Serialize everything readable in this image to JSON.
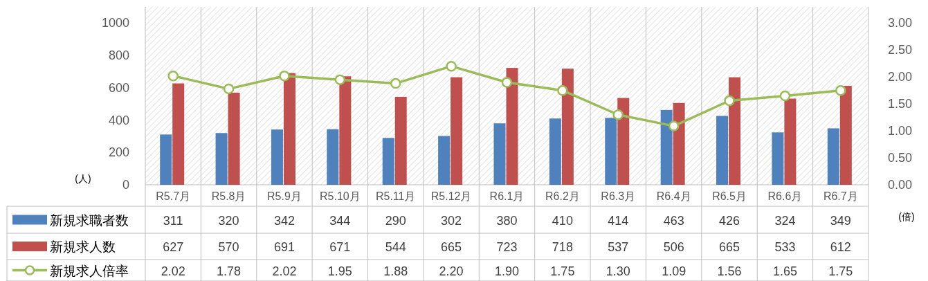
{
  "chart_data": {
    "type": "bar",
    "categories": [
      "R5.7月",
      "R5.8月",
      "R5.9月",
      "R5.10月",
      "R5.11月",
      "R5.12月",
      "R6.1月",
      "R6.2月",
      "R6.3月",
      "R6.4月",
      "R6.5月",
      "R6.6月",
      "R6.7月"
    ],
    "series": [
      {
        "name": "新規求職者数",
        "color": "#4f81bd",
        "values": [
          311,
          320,
          342,
          344,
          290,
          302,
          380,
          410,
          414,
          463,
          426,
          324,
          349
        ]
      },
      {
        "name": "新規求人数",
        "color": "#c0504d",
        "values": [
          627,
          570,
          691,
          671,
          544,
          665,
          723,
          718,
          537,
          506,
          665,
          533,
          612
        ]
      },
      {
        "name": "新規求人倍率",
        "type": "line",
        "axis": "y2",
        "color": "#9bbb59",
        "marker": "circle",
        "values": [
          2.02,
          1.78,
          2.02,
          1.95,
          1.88,
          2.2,
          1.9,
          1.75,
          1.3,
          1.09,
          1.56,
          1.65,
          1.75
        ],
        "value_labels": [
          "2.02",
          "1.78",
          "2.02",
          "1.95",
          "1.88",
          "2.20",
          "1.90",
          "1.75",
          "1.30",
          "1.09",
          "1.56",
          "1.65",
          "1.75"
        ]
      }
    ],
    "ylim": [
      0,
      1100
    ],
    "yticks": [
      0,
      200,
      400,
      600,
      800,
      1000
    ],
    "y2lim": [
      0,
      3.3
    ],
    "y2ticks": [
      {
        "value": 0,
        "label": "0.00"
      },
      {
        "value": 0.5,
        "label": "0.50"
      },
      {
        "value": 1,
        "label": "1.00"
      },
      {
        "value": 1.5,
        "label": "1.50"
      },
      {
        "value": 2,
        "label": "2.00"
      },
      {
        "value": 2.5,
        "label": "2.50"
      },
      {
        "value": 3,
        "label": "3.00"
      }
    ],
    "ylabel": "(人)",
    "y2label": "(倍)",
    "data_labels": true,
    "legend": "bottom",
    "grid": "x"
  }
}
